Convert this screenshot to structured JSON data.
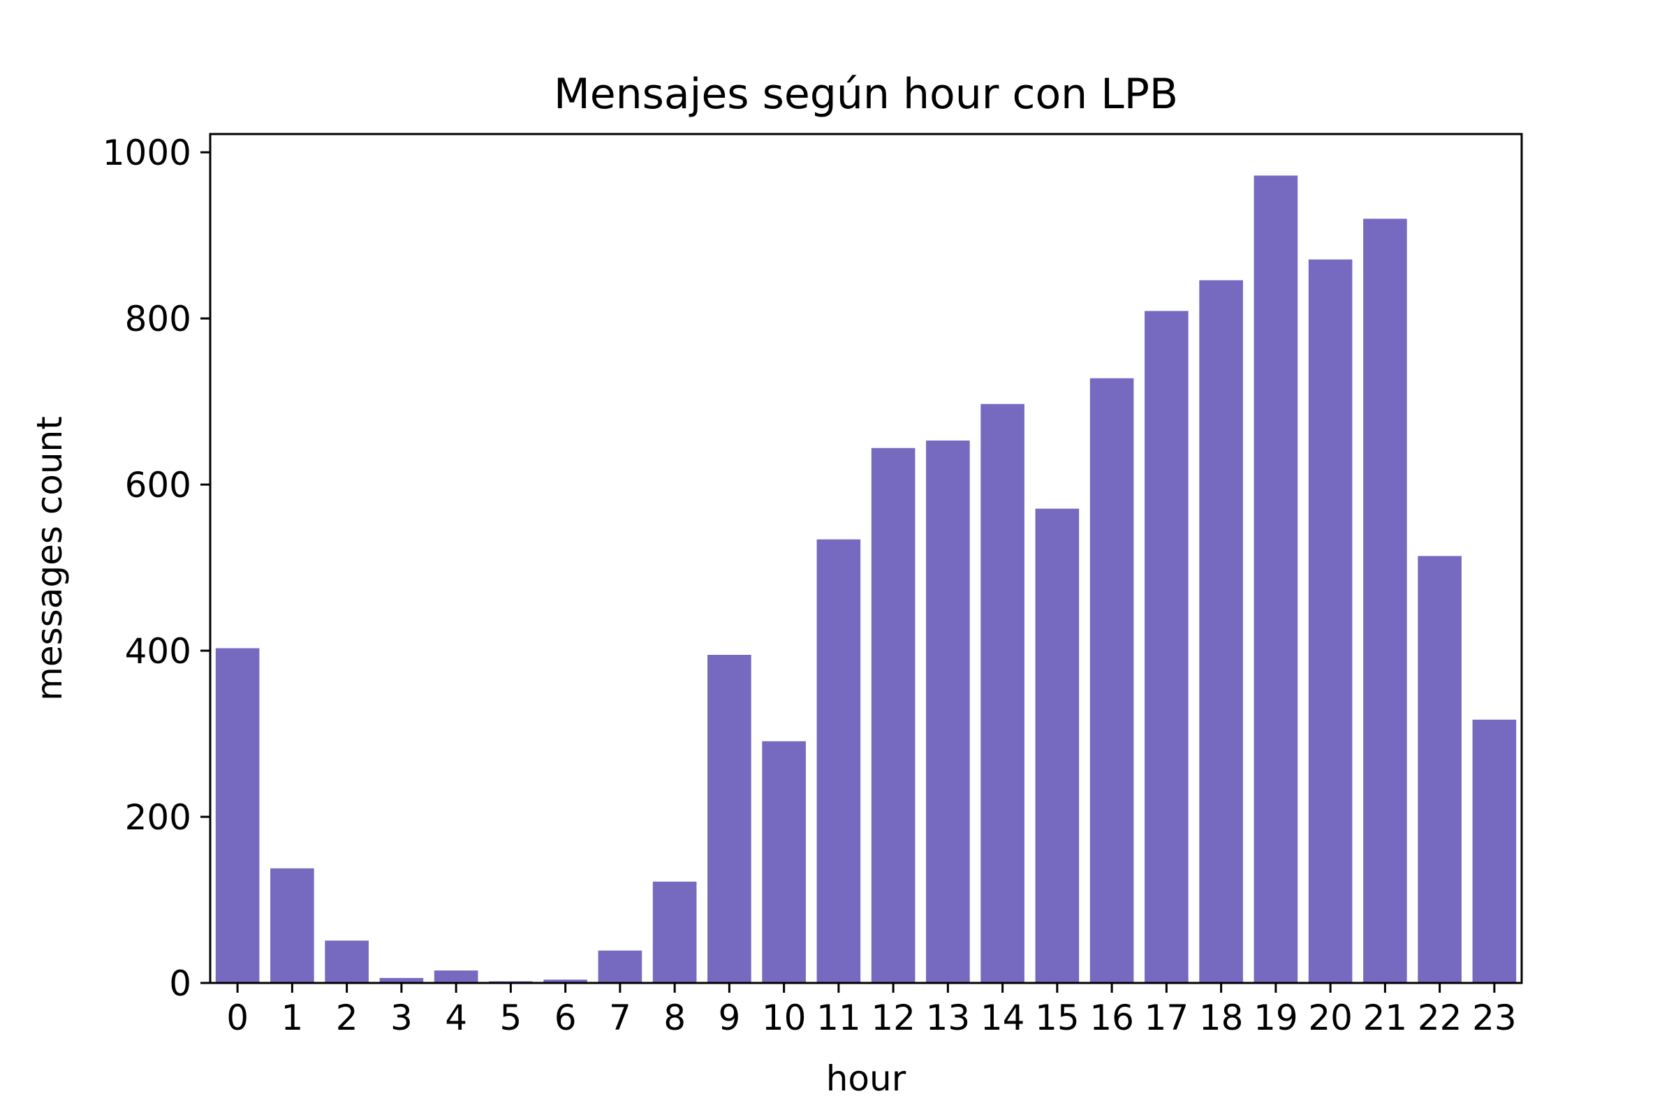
{
  "chart_data": {
    "type": "bar",
    "title": "Mensajes según hour con LPB",
    "xlabel": "hour",
    "ylabel": "messages count",
    "categories": [
      "0",
      "1",
      "2",
      "3",
      "4",
      "5",
      "6",
      "7",
      "8",
      "9",
      "10",
      "11",
      "12",
      "13",
      "14",
      "15",
      "16",
      "17",
      "18",
      "19",
      "20",
      "21",
      "22",
      "23"
    ],
    "values": [
      403,
      138,
      51,
      6,
      15,
      2,
      4,
      39,
      122,
      395,
      291,
      534,
      644,
      653,
      697,
      571,
      728,
      809,
      846,
      972,
      871,
      920,
      514,
      317
    ],
    "ylim": [
      0,
      1022
    ],
    "yticks": [
      0,
      200,
      400,
      600,
      800,
      1000
    ],
    "bar_color": "#7569c0",
    "grid": false,
    "legend": "none"
  }
}
